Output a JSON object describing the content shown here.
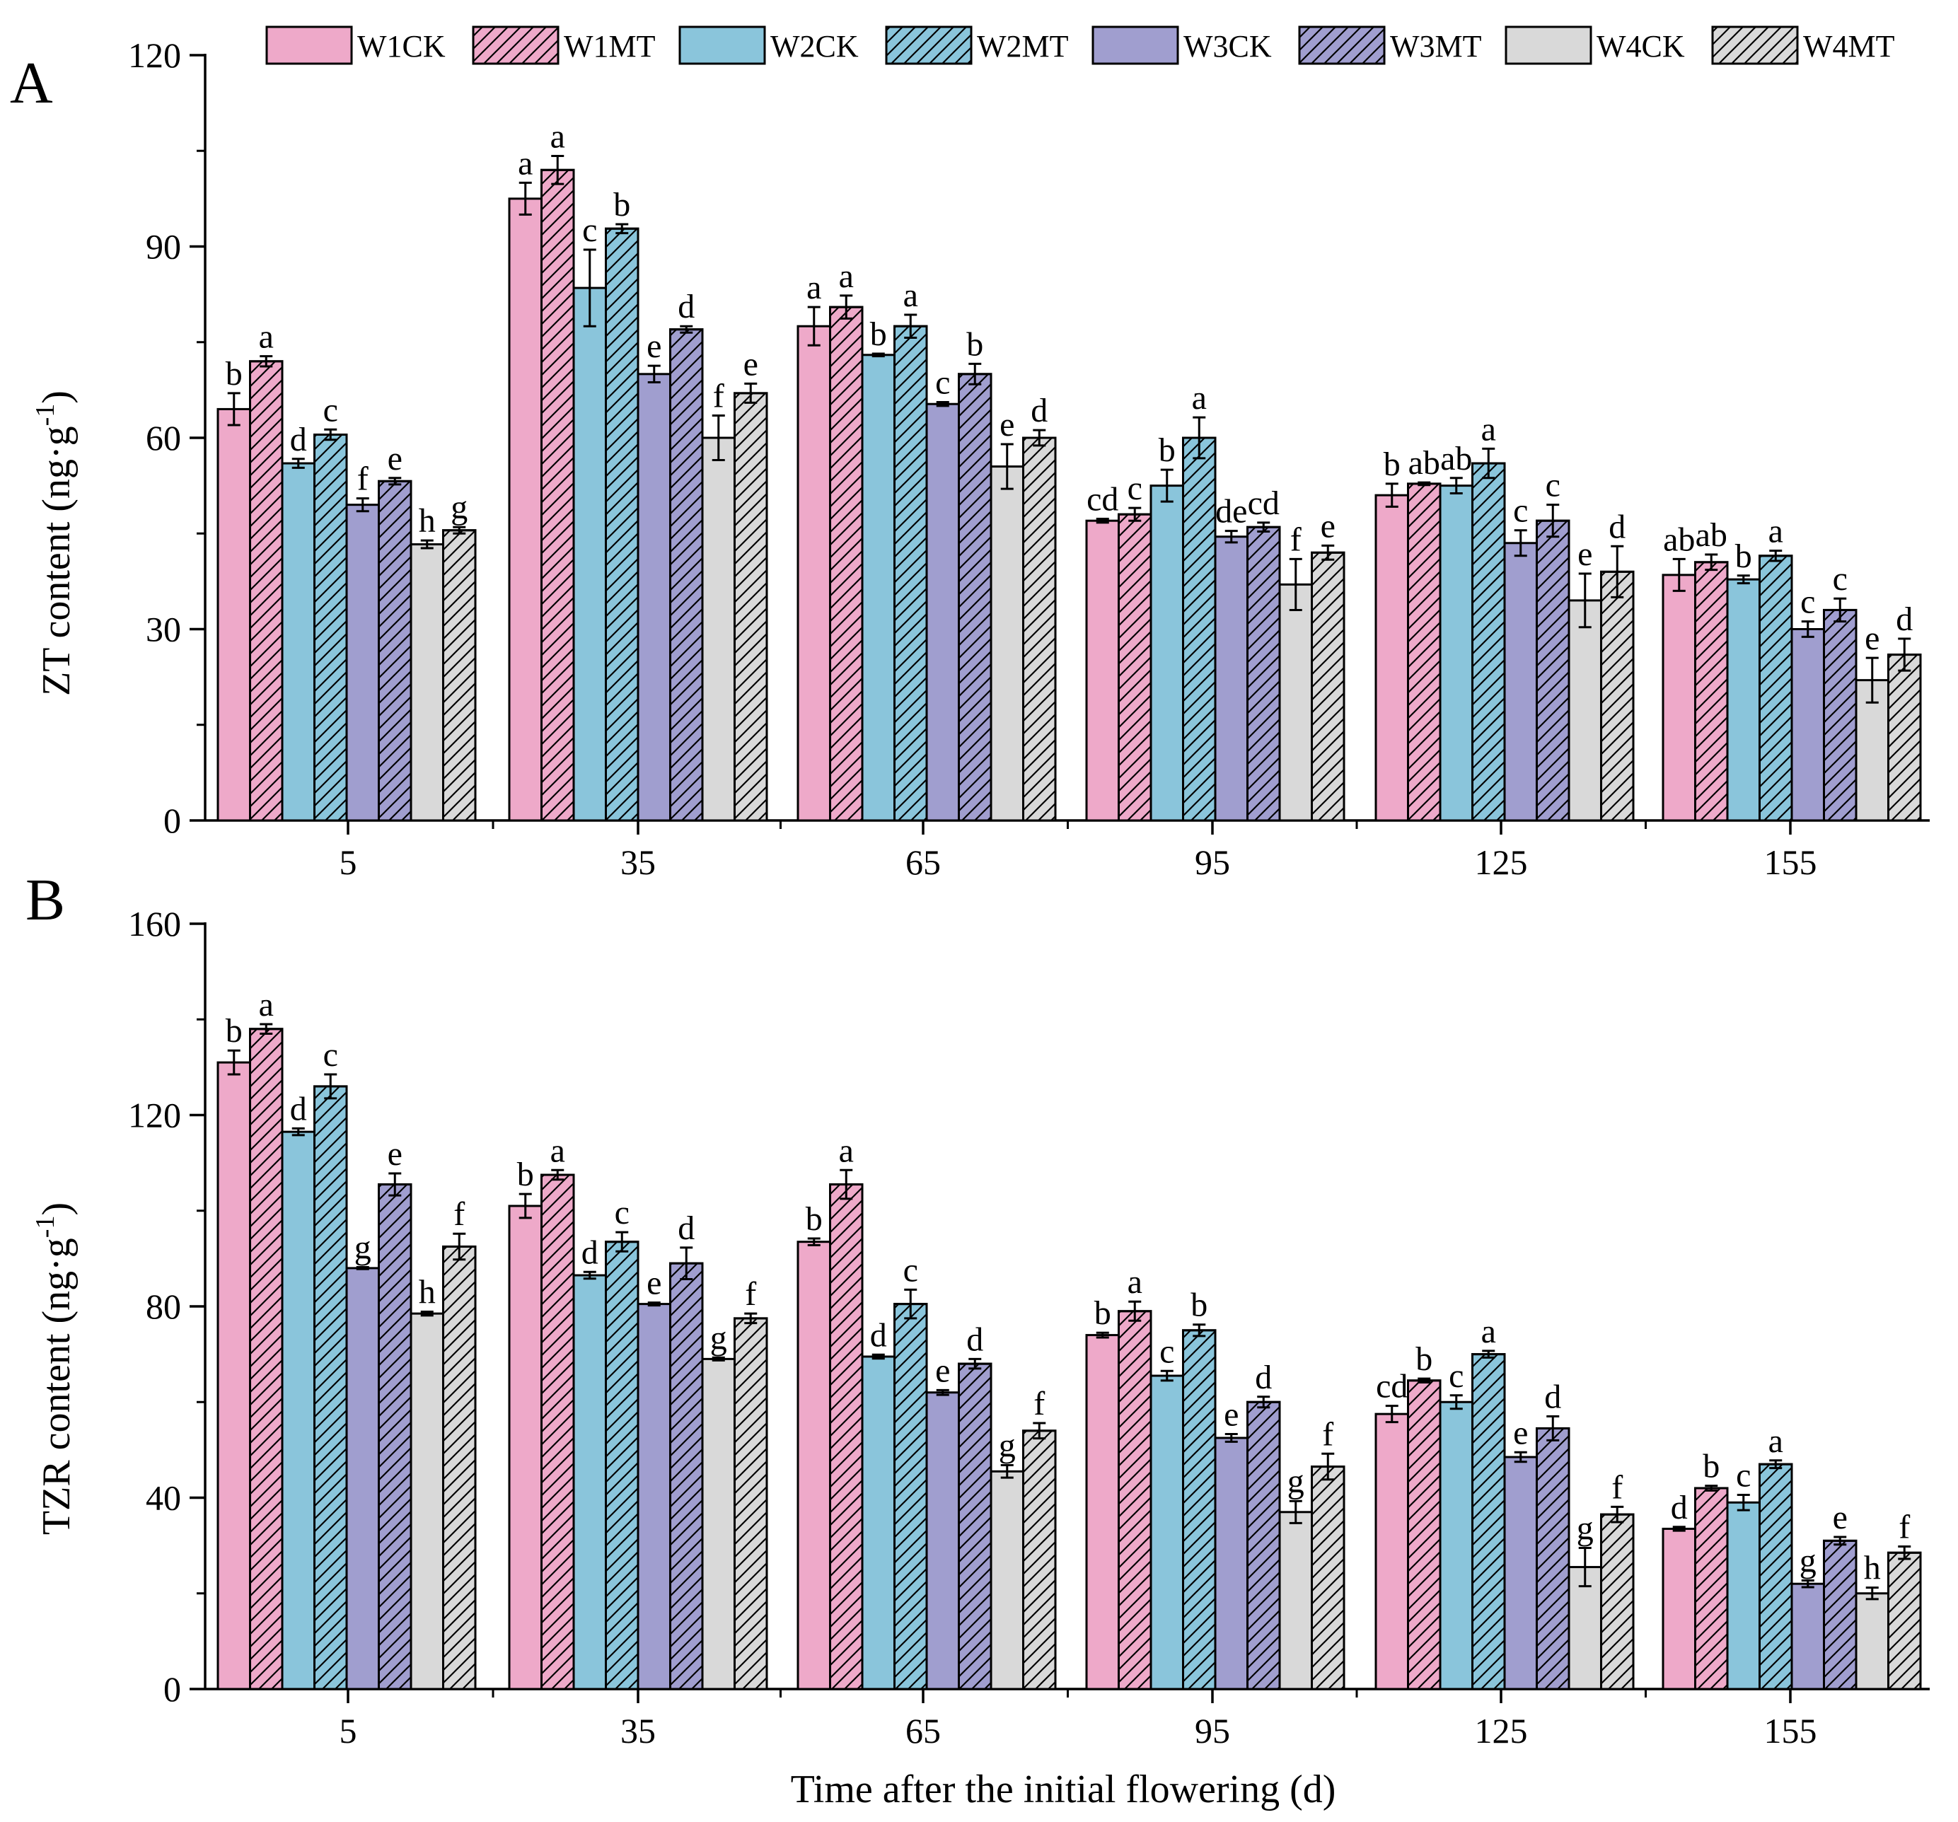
{
  "chart_data": [
    {
      "type": "bar",
      "panel": "A",
      "ylabel": "ZT content",
      "yunit": "ng·g",
      "yunit_sup": "-1",
      "ylim": [
        0,
        120
      ],
      "yticks": [
        0,
        30,
        60,
        90,
        120
      ],
      "xlabel": "",
      "categories": [
        "5",
        "35",
        "65",
        "95",
        "125",
        "155"
      ],
      "series": [
        {
          "name": "W1CK",
          "values": [
            64.5,
            97.5,
            77.5,
            47,
            51,
            38.5
          ],
          "errors": [
            2.5,
            2.5,
            3,
            0.3,
            1.8,
            2.5
          ],
          "letters": [
            "b",
            "a",
            "a",
            "cd",
            "b",
            "ab"
          ]
        },
        {
          "name": "W1MT",
          "values": [
            72,
            102,
            80.5,
            48,
            52.8,
            40.5
          ],
          "errors": [
            0.8,
            2.2,
            1.8,
            1,
            0.2,
            1.2
          ],
          "letters": [
            "a",
            "a",
            "a",
            "c",
            "ab",
            "ab"
          ]
        },
        {
          "name": "W2CK",
          "values": [
            56,
            83.5,
            73,
            52.5,
            52.5,
            37.8
          ],
          "errors": [
            0.7,
            6,
            0.2,
            2.5,
            1.2,
            0.6
          ],
          "letters": [
            "d",
            "c",
            "b",
            "b",
            "ab",
            "b"
          ]
        },
        {
          "name": "W2MT",
          "values": [
            60.5,
            92.8,
            77.5,
            60,
            56,
            41.5
          ],
          "errors": [
            0.8,
            0.7,
            1.8,
            3.2,
            2.3,
            0.8
          ],
          "letters": [
            "c",
            "b",
            "a",
            "a",
            "a",
            "a"
          ]
        },
        {
          "name": "W3CK",
          "values": [
            49.5,
            70,
            65.3,
            44.5,
            43.5,
            30
          ],
          "errors": [
            1,
            1.3,
            0.3,
            0.9,
            2,
            1.2
          ],
          "letters": [
            "f",
            "e",
            "c",
            "de",
            "c",
            "c"
          ]
        },
        {
          "name": "W3MT",
          "values": [
            53.2,
            77,
            70,
            46,
            47,
            33
          ],
          "errors": [
            0.5,
            0.5,
            1.6,
            0.7,
            2.5,
            1.8
          ],
          "letters": [
            "e",
            "d",
            "b",
            "cd",
            "c",
            "c"
          ]
        },
        {
          "name": "W4CK",
          "values": [
            43.3,
            60,
            55.5,
            37,
            34.5,
            22
          ],
          "errors": [
            0.6,
            3.5,
            3.5,
            4,
            4.2,
            3.5
          ],
          "letters": [
            "h",
            "f",
            "e",
            "f",
            "e",
            "e"
          ]
        },
        {
          "name": "W4MT",
          "values": [
            45.5,
            67,
            60,
            42,
            39,
            26
          ],
          "errors": [
            0.5,
            1.5,
            1.2,
            1.1,
            4,
            2.5
          ],
          "letters": [
            "g",
            "e",
            "d",
            "e",
            "d",
            "d"
          ]
        }
      ]
    },
    {
      "type": "bar",
      "panel": "B",
      "ylabel": "TZR content",
      "yunit": "ng·g",
      "yunit_sup": "-1",
      "ylim": [
        0,
        160
      ],
      "yticks": [
        0,
        40,
        80,
        120,
        160
      ],
      "xlabel": "Time after the initial flowering (d)",
      "categories": [
        "5",
        "35",
        "65",
        "95",
        "125",
        "155"
      ],
      "series": [
        {
          "name": "W1CK",
          "values": [
            131,
            101,
            93.5,
            74,
            57.5,
            33.5
          ],
          "errors": [
            2.5,
            2.5,
            0.7,
            0.5,
            1.7,
            0.4
          ],
          "letters": [
            "b",
            "b",
            "b",
            "b",
            "cd",
            "d"
          ]
        },
        {
          "name": "W1MT",
          "values": [
            138,
            107.5,
            105.5,
            79,
            64.5,
            42
          ],
          "errors": [
            1,
            1,
            3,
            2,
            0.4,
            0.5
          ],
          "letters": [
            "a",
            "a",
            "a",
            "a",
            "b",
            "b"
          ]
        },
        {
          "name": "W2CK",
          "values": [
            116.5,
            86.5,
            69.5,
            65.5,
            60,
            39
          ],
          "errors": [
            0.7,
            0.7,
            0.4,
            1,
            1.4,
            1.6
          ],
          "letters": [
            "d",
            "d",
            "d",
            "c",
            "c",
            "c"
          ]
        },
        {
          "name": "W2MT",
          "values": [
            126,
            93.5,
            80.5,
            75,
            70,
            47
          ],
          "errors": [
            2.5,
            2,
            3,
            1.2,
            0.7,
            0.8
          ],
          "letters": [
            "c",
            "c",
            "c",
            "b",
            "a",
            "a"
          ]
        },
        {
          "name": "W3CK",
          "values": [
            88,
            80.5,
            62,
            52.5,
            48.5,
            22
          ],
          "errors": [
            0.2,
            0.3,
            0.5,
            0.8,
            1,
            0.7
          ],
          "letters": [
            "g",
            "e",
            "e",
            "e",
            "e",
            "g"
          ]
        },
        {
          "name": "W3MT",
          "values": [
            105.5,
            89,
            68,
            60,
            54.5,
            31
          ],
          "errors": [
            2.3,
            3.3,
            1,
            1.1,
            2.5,
            0.8
          ],
          "letters": [
            "e",
            "d",
            "d",
            "d",
            "d",
            "e"
          ]
        },
        {
          "name": "W4CK",
          "values": [
            78.5,
            69,
            45.5,
            37,
            25.5,
            20
          ],
          "errors": [
            0.4,
            0.3,
            1.3,
            2.3,
            4,
            1.2
          ],
          "letters": [
            "h",
            "g",
            "g",
            "g",
            "g",
            "h"
          ]
        },
        {
          "name": "W4MT",
          "values": [
            92.5,
            77.5,
            54,
            46.5,
            36.5,
            28.5
          ],
          "errors": [
            2.7,
            1,
            1.6,
            2.7,
            1.6,
            1.3
          ],
          "letters": [
            "f",
            "f",
            "f",
            "f",
            "f",
            "f"
          ]
        }
      ]
    }
  ],
  "legend": [
    {
      "name": "W1CK",
      "color": "#EEA9C9",
      "hatched": false
    },
    {
      "name": "W1MT",
      "color": "#EEA9C9",
      "hatched": true
    },
    {
      "name": "W2CK",
      "color": "#8AC5DB",
      "hatched": false
    },
    {
      "name": "W2MT",
      "color": "#8AC5DB",
      "hatched": true
    },
    {
      "name": "W3CK",
      "color": "#A09ECF",
      "hatched": false
    },
    {
      "name": "W3MT",
      "color": "#A09ECF",
      "hatched": true
    },
    {
      "name": "W4CK",
      "color": "#D9D9D9",
      "hatched": false
    },
    {
      "name": "W4MT",
      "color": "#D9D9D9",
      "hatched": true
    }
  ]
}
